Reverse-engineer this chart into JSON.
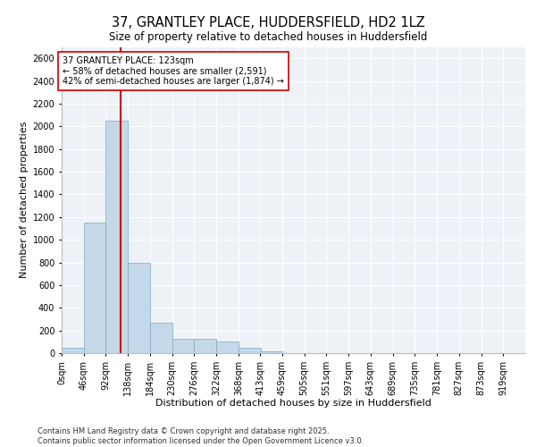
{
  "title1": "37, GRANTLEY PLACE, HUDDERSFIELD, HD2 1LZ",
  "title2": "Size of property relative to detached houses in Huddersfield",
  "xlabel": "Distribution of detached houses by size in Huddersfield",
  "ylabel": "Number of detached properties",
  "bin_labels": [
    "0sqm",
    "46sqm",
    "92sqm",
    "138sqm",
    "184sqm",
    "230sqm",
    "276sqm",
    "322sqm",
    "368sqm",
    "413sqm",
    "459sqm",
    "505sqm",
    "551sqm",
    "597sqm",
    "643sqm",
    "689sqm",
    "735sqm",
    "781sqm",
    "827sqm",
    "873sqm",
    "919sqm"
  ],
  "bin_edges": [
    0,
    46,
    92,
    138,
    184,
    230,
    276,
    322,
    368,
    413,
    459,
    505,
    551,
    597,
    643,
    689,
    735,
    781,
    827,
    873,
    919
  ],
  "bar_values": [
    50,
    1150,
    2050,
    800,
    270,
    130,
    130,
    100,
    50,
    15,
    0,
    0,
    0,
    0,
    0,
    0,
    0,
    0,
    0,
    0
  ],
  "bar_color": "#c5d8e8",
  "bar_edgecolor": "#7aaac8",
  "vline_x": 123,
  "vline_color": "#cc0000",
  "annotation_line1": "37 GRANTLEY PLACE: 123sqm",
  "annotation_line2": "← 58% of detached houses are smaller (2,591)",
  "annotation_line3": "42% of semi-detached houses are larger (1,874) →",
  "annotation_box_edgecolor": "#cc0000",
  "annotation_box_facecolor": "#ffffff",
  "ylim": [
    0,
    2700
  ],
  "yticks": [
    0,
    200,
    400,
    600,
    800,
    1000,
    1200,
    1400,
    1600,
    1800,
    2000,
    2200,
    2400,
    2600
  ],
  "background_color": "#eef2f7",
  "footer_text": "Contains HM Land Registry data © Crown copyright and database right 2025.\nContains public sector information licensed under the Open Government Licence v3.0.",
  "title1_fontsize": 10.5,
  "title2_fontsize": 8.5,
  "axis_label_fontsize": 8,
  "tick_fontsize": 7,
  "annotation_fontsize": 7,
  "footer_fontsize": 6,
  "ylabel_fontsize": 8
}
